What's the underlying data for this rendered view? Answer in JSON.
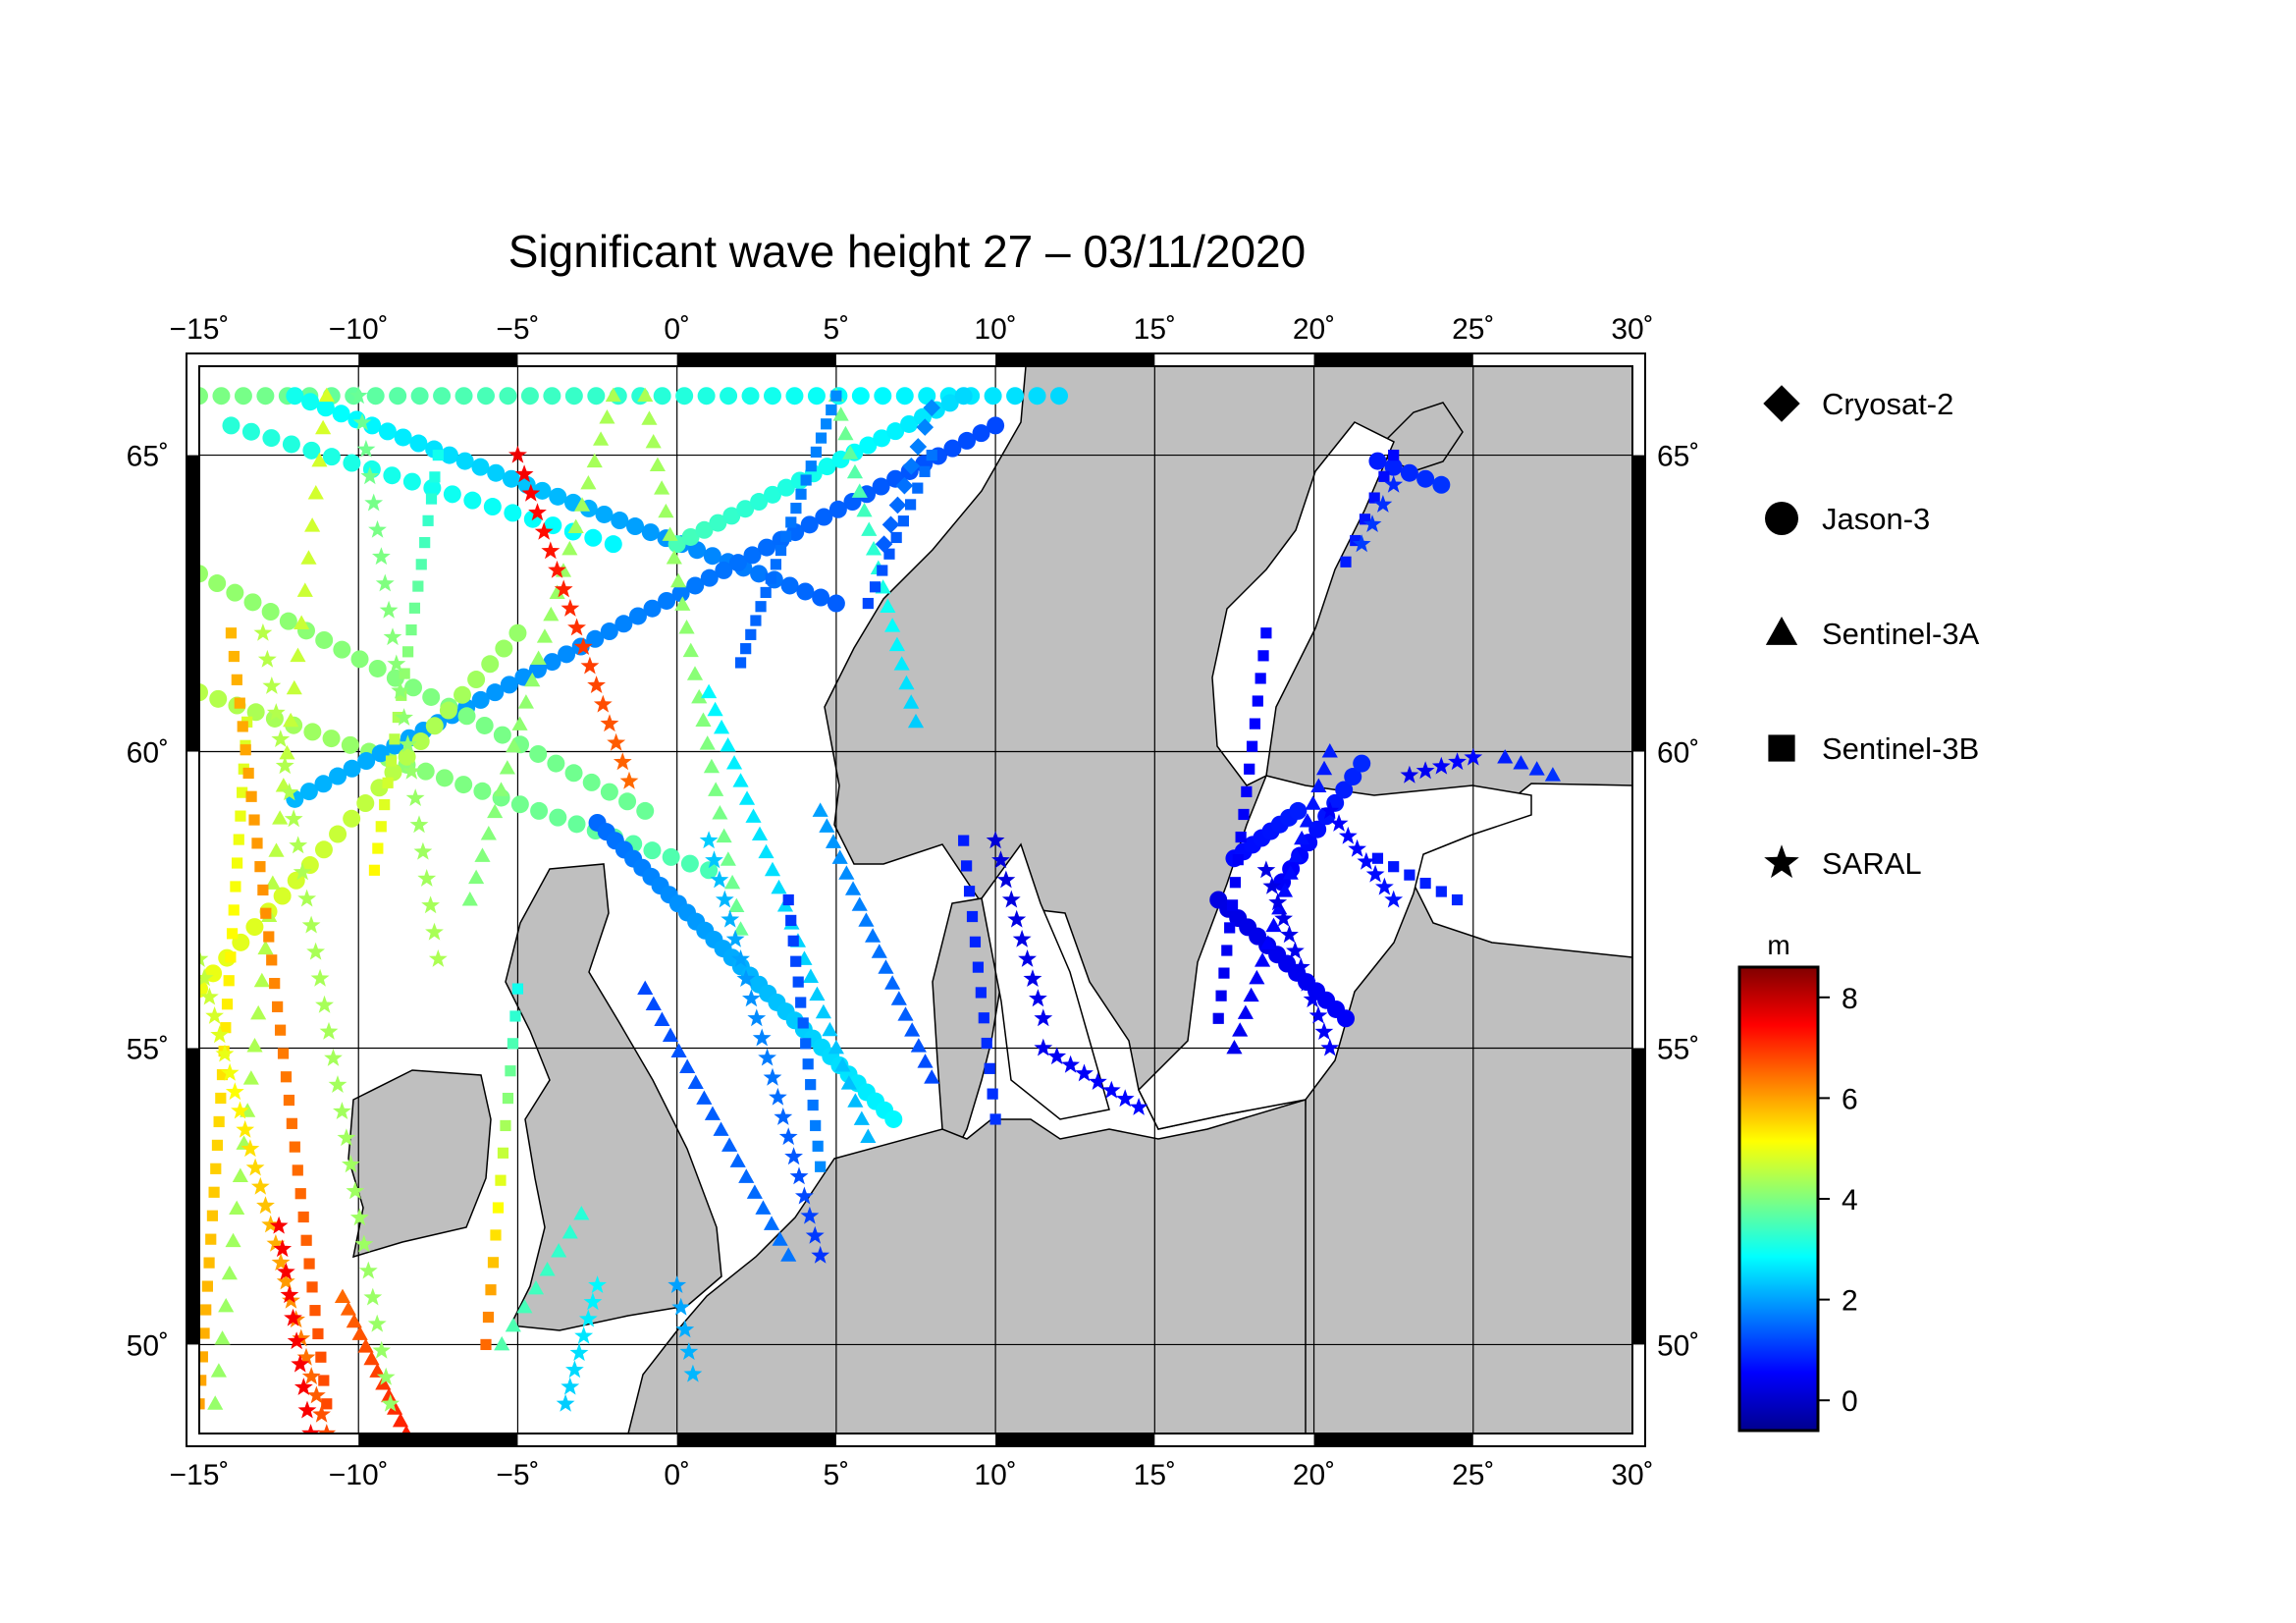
{
  "title": "Significant wave height 27 – 03/11/2020",
  "map": {
    "lon_range": [
      -15,
      30
    ],
    "lat_range": [
      48.5,
      66.5
    ],
    "lon_ticks": [
      -15,
      -10,
      -5,
      0,
      5,
      10,
      15,
      20,
      25,
      30
    ],
    "lat_ticks": [
      50,
      55,
      60,
      65
    ],
    "lon_labels": [
      "−15˚",
      "−10˚",
      "−5˚",
      "0˚",
      "5˚",
      "10˚",
      "15˚",
      "20˚",
      "25˚",
      "30˚"
    ],
    "lat_labels": [
      "50˚",
      "55˚",
      "60˚",
      "65˚"
    ],
    "land_color": "#bfbfbf",
    "sea_color": "#ffffff"
  },
  "legend": {
    "items": [
      {
        "label": "Cryosat-2",
        "symbol": "diamond"
      },
      {
        "label": "Jason-3",
        "symbol": "circle"
      },
      {
        "label": "Sentinel-3A",
        "symbol": "triangle"
      },
      {
        "label": "Sentinel-3B",
        "symbol": "square"
      },
      {
        "label": "SARAL",
        "symbol": "star"
      }
    ]
  },
  "colorbar": {
    "unit": "m",
    "min": -0.6,
    "max": 8.6,
    "ticks": [
      0,
      2,
      4,
      6,
      8
    ],
    "tick_labels": [
      "0",
      "2",
      "4",
      "6",
      "8"
    ],
    "colormap": "jet"
  },
  "chart_data": {
    "type": "scatter",
    "title": "Significant wave height 27 – 03/11/2020",
    "xlabel": "",
    "ylabel": "",
    "xlim": [
      -15,
      30
    ],
    "ylim": [
      48.5,
      66.5
    ],
    "value_unit": "m",
    "tracks": [
      {
        "satellite": "Jason-3",
        "symbol": "circle",
        "from": [
          -15,
          66.0
        ],
        "to": [
          12,
          66.0
        ],
        "n": 40,
        "h": [
          4.0,
          2.5
        ]
      },
      {
        "satellite": "Jason-3",
        "symbol": "circle",
        "from": [
          -14,
          65.5
        ],
        "to": [
          -2,
          63.5
        ],
        "n": 20,
        "h": [
          3.2,
          2.8
        ]
      },
      {
        "satellite": "Jason-3",
        "symbol": "circle",
        "from": [
          -12,
          66.0
        ],
        "to": [
          5,
          62.5
        ],
        "n": 36,
        "h": [
          3.0,
          1.4
        ]
      },
      {
        "satellite": "Jason-3",
        "symbol": "circle",
        "from": [
          -15,
          61.0
        ],
        "to": [
          1,
          58.0
        ],
        "n": 28,
        "h": [
          4.5,
          3.5
        ]
      },
      {
        "satellite": "Jason-3",
        "symbol": "circle",
        "from": [
          -12,
          59.2
        ],
        "to": [
          10,
          65.5
        ],
        "n": 50,
        "h": [
          2.2,
          1.2
        ]
      },
      {
        "satellite": "Jason-3",
        "symbol": "circle",
        "from": [
          -15,
          63.0
        ],
        "to": [
          -1,
          59.0
        ],
        "n": 26,
        "h": [
          4.2,
          3.8
        ]
      },
      {
        "satellite": "Jason-3",
        "symbol": "circle",
        "from": [
          -15,
          56.0
        ],
        "to": [
          -5,
          62.0
        ],
        "n": 24,
        "h": [
          5.0,
          4.2
        ]
      },
      {
        "satellite": "Jason-3",
        "symbol": "circle",
        "from": [
          -2.5,
          58.8
        ],
        "to": [
          6.8,
          53.8
        ],
        "n": 34,
        "h": [
          1.5,
          2.8
        ]
      },
      {
        "satellite": "Jason-3",
        "symbol": "circle",
        "from": [
          0,
          63.5
        ],
        "to": [
          9,
          66.0
        ],
        "n": 22,
        "h": [
          3.5,
          2.5
        ]
      },
      {
        "satellite": "Jason-3",
        "symbol": "circle",
        "from": [
          17,
          57.5
        ],
        "to": [
          21,
          55.5
        ],
        "n": 14,
        "h": [
          0.3,
          0.5
        ]
      },
      {
        "satellite": "Jason-3",
        "symbol": "circle",
        "from": [
          17.5,
          58.2
        ],
        "to": [
          19.5,
          59.0
        ],
        "n": 8,
        "h": [
          0.6,
          0.8
        ]
      },
      {
        "satellite": "Jason-3",
        "symbol": "circle",
        "from": [
          19,
          57.8
        ],
        "to": [
          21.5,
          59.8
        ],
        "n": 10,
        "h": [
          0.5,
          0.9
        ]
      },
      {
        "satellite": "Jason-3",
        "symbol": "circle",
        "from": [
          22,
          64.9
        ],
        "to": [
          24,
          64.5
        ],
        "n": 5,
        "h": [
          0.8,
          1.0
        ]
      },
      {
        "satellite": "Sentinel-3A",
        "symbol": "triangle",
        "from": [
          -14.5,
          49.0
        ],
        "to": [
          -11,
          66.0
        ],
        "n": 32,
        "h": [
          4.2,
          4.8
        ]
      },
      {
        "satellite": "Sentinel-3A",
        "symbol": "triangle",
        "from": [
          -10.5,
          50.8
        ],
        "to": [
          -8.5,
          48.5
        ],
        "n": 12,
        "h": [
          6.5,
          7.2
        ]
      },
      {
        "satellite": "Sentinel-3A",
        "symbol": "triangle",
        "from": [
          -6.5,
          57.5
        ],
        "to": [
          -2,
          66.0
        ],
        "n": 24,
        "h": [
          4.0,
          4.4
        ]
      },
      {
        "satellite": "Sentinel-3A",
        "symbol": "triangle",
        "from": [
          -1,
          66.0
        ],
        "to": [
          2,
          57.0
        ],
        "n": 24,
        "h": [
          4.4,
          3.8
        ]
      },
      {
        "satellite": "Sentinel-3A",
        "symbol": "triangle",
        "from": [
          -1,
          56.0
        ],
        "to": [
          3.5,
          51.5
        ],
        "n": 18,
        "h": [
          1.2,
          1.6
        ]
      },
      {
        "satellite": "Sentinel-3A",
        "symbol": "triangle",
        "from": [
          1,
          61.0
        ],
        "to": [
          6,
          53.5
        ],
        "n": 26,
        "h": [
          2.8,
          2.2
        ]
      },
      {
        "satellite": "Sentinel-3A",
        "symbol": "triangle",
        "from": [
          4.5,
          59.0
        ],
        "to": [
          8,
          54.5
        ],
        "n": 18,
        "h": [
          2.0,
          1.2
        ]
      },
      {
        "satellite": "Sentinel-3A",
        "symbol": "triangle",
        "from": [
          5,
          66.0
        ],
        "to": [
          7.5,
          60.5
        ],
        "n": 18,
        "h": [
          4.0,
          2.4
        ]
      },
      {
        "satellite": "Sentinel-3A",
        "symbol": "triangle",
        "from": [
          17.5,
          55.0
        ],
        "to": [
          20.5,
          60.0
        ],
        "n": 18,
        "h": [
          0.4,
          0.8
        ]
      },
      {
        "satellite": "Sentinel-3A",
        "symbol": "triangle",
        "from": [
          -3,
          52.2
        ],
        "to": [
          -5.5,
          50.0
        ],
        "n": 8,
        "h": [
          3.2,
          3.6
        ]
      },
      {
        "satellite": "Sentinel-3A",
        "symbol": "triangle",
        "from": [
          26,
          59.9
        ],
        "to": [
          27.5,
          59.6
        ],
        "n": 4,
        "h": [
          0.8,
          1.0
        ]
      },
      {
        "satellite": "Sentinel-3B",
        "symbol": "square",
        "from": [
          -15,
          49.0
        ],
        "to": [
          -13.5,
          60.5
        ],
        "n": 30,
        "h": [
          6.0,
          4.8
        ]
      },
      {
        "satellite": "Sentinel-3B",
        "symbol": "square",
        "from": [
          -14,
          62.0
        ],
        "to": [
          -11,
          49.0
        ],
        "n": 34,
        "h": [
          5.8,
          6.8
        ]
      },
      {
        "satellite": "Sentinel-3B",
        "symbol": "square",
        "from": [
          -9.5,
          58.0
        ],
        "to": [
          -7.5,
          65.0
        ],
        "n": 20,
        "h": [
          5.2,
          3.0
        ]
      },
      {
        "satellite": "Sentinel-3B",
        "symbol": "square",
        "from": [
          -6,
          50.0
        ],
        "to": [
          -5,
          56.0
        ],
        "n": 14,
        "h": [
          6.5,
          3.0
        ]
      },
      {
        "satellite": "Sentinel-3B",
        "symbol": "square",
        "from": [
          2,
          61.5
        ],
        "to": [
          5,
          66.0
        ],
        "n": 20,
        "h": [
          1.4,
          1.8
        ]
      },
      {
        "satellite": "Sentinel-3B",
        "symbol": "square",
        "from": [
          3.5,
          57.5
        ],
        "to": [
          4.5,
          53.0
        ],
        "n": 14,
        "h": [
          1.0,
          1.8
        ]
      },
      {
        "satellite": "Sentinel-3B",
        "symbol": "square",
        "from": [
          6,
          62.5
        ],
        "to": [
          8,
          65.0
        ],
        "n": 10,
        "h": [
          1.2,
          1.6
        ]
      },
      {
        "satellite": "Sentinel-3B",
        "symbol": "square",
        "from": [
          17,
          55.5
        ],
        "to": [
          18.5,
          62.0
        ],
        "n": 18,
        "h": [
          0.4,
          0.6
        ]
      },
      {
        "satellite": "Sentinel-3B",
        "symbol": "square",
        "from": [
          9,
          58.5
        ],
        "to": [
          10,
          53.8
        ],
        "n": 12,
        "h": [
          0.8,
          1.0
        ]
      },
      {
        "satellite": "Sentinel-3B",
        "symbol": "square",
        "from": [
          22,
          58.2
        ],
        "to": [
          24.5,
          57.5
        ],
        "n": 6,
        "h": [
          0.7,
          0.9
        ]
      },
      {
        "satellite": "Sentinel-3B",
        "symbol": "square",
        "from": [
          22.5,
          65.0
        ],
        "to": [
          21,
          63.2
        ],
        "n": 6,
        "h": [
          0.6,
          0.8
        ]
      },
      {
        "satellite": "SARAL",
        "symbol": "star",
        "from": [
          -15,
          56.5
        ],
        "to": [
          -11,
          48.5
        ],
        "n": 26,
        "h": [
          4.5,
          6.8
        ]
      },
      {
        "satellite": "SARAL",
        "symbol": "star",
        "from": [
          -12.5,
          52.0
        ],
        "to": [
          -11.5,
          48.5
        ],
        "n": 10,
        "h": [
          7.5,
          7.5
        ]
      },
      {
        "satellite": "SARAL",
        "symbol": "star",
        "from": [
          -13,
          62.0
        ],
        "to": [
          -9,
          49.0
        ],
        "n": 30,
        "h": [
          4.5,
          4.2
        ]
      },
      {
        "satellite": "SARAL",
        "symbol": "star",
        "from": [
          -10,
          66.0
        ],
        "to": [
          -7.5,
          56.5
        ],
        "n": 22,
        "h": [
          3.8,
          4.4
        ]
      },
      {
        "satellite": "SARAL",
        "symbol": "star",
        "from": [
          -5,
          65.0
        ],
        "to": [
          -1.5,
          59.5
        ],
        "n": 18,
        "h": [
          7.6,
          6.5
        ]
      },
      {
        "satellite": "SARAL",
        "symbol": "star",
        "from": [
          -2.5,
          51.0
        ],
        "to": [
          -3.5,
          49.0
        ],
        "n": 8,
        "h": [
          2.8,
          2.4
        ]
      },
      {
        "satellite": "SARAL",
        "symbol": "star",
        "from": [
          1,
          58.5
        ],
        "to": [
          4.5,
          51.5
        ],
        "n": 22,
        "h": [
          2.4,
          1.0
        ]
      },
      {
        "satellite": "SARAL",
        "symbol": "star",
        "from": [
          0,
          51.0
        ],
        "to": [
          0.5,
          49.5
        ],
        "n": 5,
        "h": [
          2.0,
          2.2
        ]
      },
      {
        "satellite": "SARAL",
        "symbol": "star",
        "from": [
          10,
          58.5
        ],
        "to": [
          11.5,
          55.5
        ],
        "n": 10,
        "h": [
          0.2,
          0.4
        ]
      },
      {
        "satellite": "SARAL",
        "symbol": "star",
        "from": [
          11.5,
          55.0
        ],
        "to": [
          14.5,
          54.0
        ],
        "n": 8,
        "h": [
          0.4,
          0.6
        ]
      },
      {
        "satellite": "SARAL",
        "symbol": "star",
        "from": [
          18.5,
          58.0
        ],
        "to": [
          20.5,
          55.0
        ],
        "n": 12,
        "h": [
          0.3,
          0.5
        ]
      },
      {
        "satellite": "SARAL",
        "symbol": "star",
        "from": [
          20.5,
          59.0
        ],
        "to": [
          22.5,
          57.5
        ],
        "n": 8,
        "h": [
          0.5,
          0.7
        ]
      },
      {
        "satellite": "SARAL",
        "symbol": "star",
        "from": [
          22.5,
          64.5
        ],
        "to": [
          21.5,
          63.5
        ],
        "n": 4,
        "h": [
          0.9,
          1.1
        ]
      },
      {
        "satellite": "SARAL",
        "symbol": "star",
        "from": [
          23,
          59.6
        ],
        "to": [
          25,
          59.9
        ],
        "n": 5,
        "h": [
          0.4,
          0.6
        ]
      },
      {
        "satellite": "Cryosat-2",
        "symbol": "diamond",
        "from": [
          6.5,
          63.5
        ],
        "to": [
          8,
          65.8
        ],
        "n": 8,
        "h": [
          1.4,
          1.8
        ]
      }
    ]
  }
}
